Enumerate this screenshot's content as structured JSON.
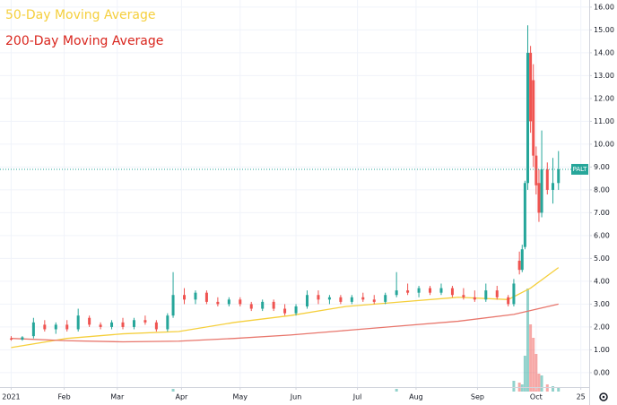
{
  "chart_data": {
    "type": "candlestick",
    "ticker": "PALT",
    "xlim": [
      -4,
      207
    ],
    "ylim": [
      -0.63,
      16.31
    ],
    "xticks": [
      {
        "value": 0,
        "label": "2021"
      },
      {
        "value": 19,
        "label": "Feb"
      },
      {
        "value": 38,
        "label": "Mar"
      },
      {
        "value": 61,
        "label": "Apr"
      },
      {
        "value": 82,
        "label": "May"
      },
      {
        "value": 102,
        "label": "Jun"
      },
      {
        "value": 124,
        "label": "Jul"
      },
      {
        "value": 145,
        "label": "Aug"
      },
      {
        "value": 167,
        "label": "Sep"
      },
      {
        "value": 188,
        "label": "Oct"
      },
      {
        "value": 204,
        "label": "25"
      }
    ],
    "yticks": [
      {
        "value": 0,
        "label": "0.00"
      },
      {
        "value": 1,
        "label": "1.00"
      },
      {
        "value": 2,
        "label": "2.00"
      },
      {
        "value": 3,
        "label": "3.00"
      },
      {
        "value": 4,
        "label": "4.00"
      },
      {
        "value": 5,
        "label": "5.00"
      },
      {
        "value": 6,
        "label": "6.00"
      },
      {
        "value": 7,
        "label": "7.00"
      },
      {
        "value": 8,
        "label": "8.00"
      },
      {
        "value": 9,
        "label": "9.00"
      },
      {
        "value": 10,
        "label": "10.00"
      },
      {
        "value": 11,
        "label": "11.00"
      },
      {
        "value": 12,
        "label": "12.00"
      },
      {
        "value": 13,
        "label": "13.00"
      },
      {
        "value": 14,
        "label": "14.00"
      },
      {
        "value": 15,
        "label": "15.00"
      },
      {
        "value": 16,
        "label": "16.00"
      }
    ],
    "grid": true,
    "up_color": "#26a69a",
    "down_color": "#ef5350",
    "candles": {
      "x": [
        0,
        4,
        8,
        12,
        16,
        20,
        24,
        28,
        32,
        36,
        40,
        44,
        48,
        52,
        56,
        58,
        62,
        66,
        70,
        74,
        78,
        82,
        86,
        90,
        94,
        98,
        102,
        106,
        110,
        114,
        118,
        122,
        126,
        130,
        134,
        138,
        142,
        146,
        150,
        154,
        158,
        162,
        166,
        170,
        174,
        178,
        180,
        182,
        183,
        184,
        185,
        186,
        187,
        188,
        189,
        190,
        192,
        194,
        196
      ],
      "open": [
        1.5,
        1.45,
        1.6,
        2.1,
        1.9,
        2.1,
        1.9,
        2.4,
        2.1,
        2.0,
        2.2,
        2.0,
        2.3,
        2.2,
        1.9,
        2.5,
        3.4,
        3.2,
        3.5,
        3.1,
        3.0,
        3.2,
        3.0,
        2.8,
        3.1,
        2.8,
        2.6,
        2.9,
        3.4,
        3.2,
        3.3,
        3.1,
        3.3,
        3.2,
        3.1,
        3.4,
        3.6,
        3.5,
        3.7,
        3.5,
        3.7,
        3.4,
        3.3,
        3.2,
        3.6,
        3.3,
        3.0,
        4.9,
        4.5,
        5.5,
        8.3,
        14.0,
        12.8,
        9.5,
        8.3,
        7.0,
        8.9,
        8.0,
        8.3
      ],
      "high": [
        1.6,
        1.6,
        2.4,
        2.3,
        2.2,
        2.3,
        2.8,
        2.5,
        2.2,
        2.3,
        2.4,
        2.4,
        2.5,
        2.3,
        2.6,
        4.4,
        3.7,
        3.6,
        3.6,
        3.3,
        3.3,
        3.3,
        3.1,
        3.2,
        3.2,
        3.0,
        3.0,
        3.6,
        3.6,
        3.4,
        3.4,
        3.4,
        3.5,
        3.4,
        3.5,
        4.4,
        3.9,
        3.8,
        3.8,
        3.9,
        3.8,
        3.7,
        3.6,
        3.9,
        3.8,
        3.4,
        4.1,
        5.3,
        5.6,
        8.4,
        15.2,
        14.3,
        13.5,
        9.9,
        8.9,
        10.6,
        9.2,
        9.4,
        9.7
      ],
      "low": [
        1.4,
        1.4,
        1.5,
        1.8,
        1.7,
        1.8,
        1.8,
        2.0,
        1.9,
        1.9,
        1.9,
        1.9,
        2.1,
        1.8,
        1.8,
        2.4,
        3.0,
        3.0,
        3.0,
        2.9,
        2.9,
        2.9,
        2.7,
        2.7,
        2.7,
        2.5,
        2.5,
        2.8,
        3.0,
        3.0,
        3.0,
        3.0,
        3.1,
        3.0,
        3.0,
        3.3,
        3.4,
        3.3,
        3.4,
        3.4,
        3.3,
        3.2,
        3.1,
        3.1,
        3.2,
        2.9,
        2.9,
        4.3,
        4.4,
        5.4,
        8.0,
        10.5,
        9.0,
        7.8,
        6.6,
        6.8,
        7.8,
        7.4,
        8.0
      ],
      "close": [
        1.45,
        1.55,
        2.2,
        1.9,
        2.1,
        1.9,
        2.5,
        2.1,
        2.0,
        2.2,
        2.0,
        2.3,
        2.2,
        1.9,
        2.5,
        3.4,
        3.2,
        3.5,
        3.1,
        3.0,
        3.2,
        3.0,
        2.8,
        3.1,
        2.8,
        2.6,
        2.9,
        3.4,
        3.2,
        3.3,
        3.1,
        3.3,
        3.2,
        3.1,
        3.4,
        3.6,
        3.5,
        3.7,
        3.5,
        3.7,
        3.4,
        3.3,
        3.2,
        3.6,
        3.3,
        3.0,
        3.9,
        4.5,
        5.4,
        8.3,
        14.0,
        11.0,
        9.5,
        8.2,
        7.0,
        8.9,
        8.0,
        8.3,
        8.9
      ]
    },
    "series": [
      {
        "name": "50-Day Moving Average",
        "color": "#f5cf3c",
        "x": [
          0,
          20,
          40,
          60,
          80,
          100,
          120,
          140,
          160,
          178,
          186,
          196
        ],
        "values": [
          1.1,
          1.5,
          1.7,
          1.8,
          2.2,
          2.5,
          2.9,
          3.1,
          3.3,
          3.2,
          3.7,
          4.6
        ]
      },
      {
        "name": "200-Day Moving Average",
        "color": "#e8766c",
        "x": [
          0,
          20,
          40,
          60,
          80,
          100,
          120,
          140,
          160,
          180,
          196
        ],
        "values": [
          1.5,
          1.4,
          1.35,
          1.38,
          1.5,
          1.65,
          1.85,
          2.05,
          2.25,
          2.55,
          3.0
        ]
      }
    ],
    "volume": {
      "x": [
        58,
        138,
        180,
        182,
        183,
        184,
        185,
        186,
        187,
        188,
        189,
        190,
        192,
        194,
        196
      ],
      "values": [
        3,
        3,
        12,
        10,
        8,
        40,
        115,
        75,
        60,
        42,
        20,
        18,
        8,
        6,
        4
      ],
      "ylim": [
        0,
        115
      ]
    }
  }
}
